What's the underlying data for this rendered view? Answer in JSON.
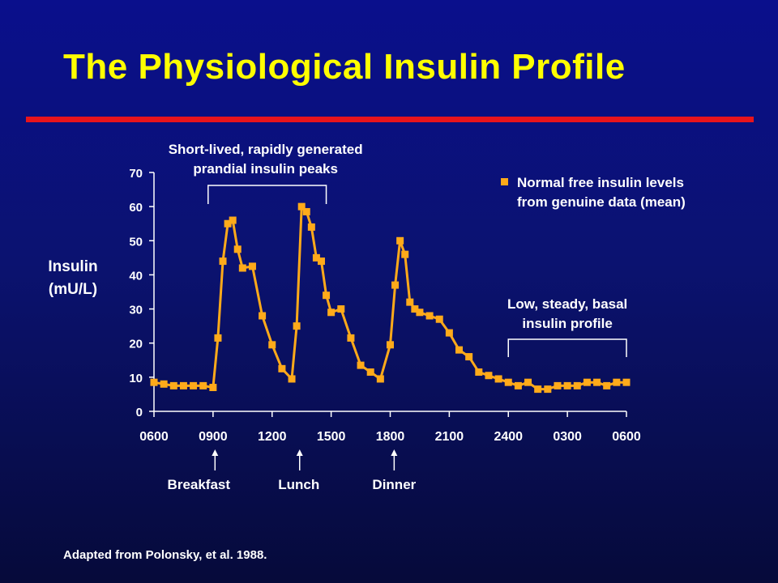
{
  "slide": {
    "title": "The Physiological Insulin Profile",
    "source": "Adapted from Polonsky, et al. 1988."
  },
  "colors": {
    "title": "#ffff00",
    "rule": "#e8141c",
    "series": "#ffaa1a",
    "text": "#ffffff"
  },
  "chart_data": {
    "type": "line",
    "ylabel_lines": [
      "Insulin",
      "(mU/L)"
    ],
    "ylim": [
      0,
      70
    ],
    "yticks": [
      0,
      10,
      20,
      30,
      40,
      50,
      60,
      70
    ],
    "xlim": [
      0,
      24
    ],
    "xticks": [
      {
        "x": 0,
        "label": "0600"
      },
      {
        "x": 3,
        "label": "0900"
      },
      {
        "x": 6,
        "label": "1200"
      },
      {
        "x": 9,
        "label": "1500"
      },
      {
        "x": 12,
        "label": "1800"
      },
      {
        "x": 15,
        "label": "2100"
      },
      {
        "x": 18,
        "label": "2400"
      },
      {
        "x": 21,
        "label": "0300"
      },
      {
        "x": 24,
        "label": "0600"
      }
    ],
    "grid": false,
    "legend_position": "top-right",
    "series": [
      {
        "name": "Normal free insulin levels from genuine data (mean)",
        "legend_lines": [
          "Normal free insulin levels",
          "from genuine data (mean)"
        ],
        "x": [
          0,
          0.5,
          1,
          1.5,
          2,
          2.5,
          3,
          3.25,
          3.5,
          3.75,
          4,
          4.25,
          4.5,
          5,
          5.5,
          6,
          6.5,
          7,
          7.25,
          7.5,
          7.75,
          8,
          8.25,
          8.5,
          8.75,
          9,
          9.5,
          10,
          10.5,
          11,
          11.5,
          12,
          12.25,
          12.5,
          12.75,
          13,
          13.25,
          13.5,
          14,
          14.5,
          15,
          15.5,
          16,
          16.5,
          17,
          17.5,
          18,
          18.5,
          19,
          19.5,
          20,
          20.5,
          21,
          21.5,
          22,
          22.5,
          23,
          23.5,
          24
        ],
        "y": [
          8.5,
          8,
          7.5,
          7.5,
          7.5,
          7.5,
          7,
          21.5,
          44,
          55,
          56,
          47.5,
          42,
          42.5,
          28,
          19.5,
          12.5,
          9.5,
          25,
          60,
          58.5,
          54,
          45,
          44,
          34,
          29,
          30,
          21.5,
          13.5,
          11.5,
          9.5,
          19.5,
          37,
          50,
          46,
          32,
          30,
          29,
          28,
          27,
          23,
          18,
          16,
          11.5,
          10.5,
          9.5,
          8.5,
          7.5,
          8.5,
          6.5,
          6.5,
          7.5,
          7.5,
          7.5,
          8.5,
          8.5,
          7.5,
          8.5,
          8.5
        ]
      }
    ],
    "annotations": [
      {
        "id": "prandial",
        "lines": [
          "Short-lived, rapidly generated",
          "prandial insulin peaks"
        ],
        "x_range": [
          2.75,
          8.75
        ]
      },
      {
        "id": "basal",
        "lines": [
          "Low, steady, basal",
          "insulin profile"
        ],
        "x_range": [
          18,
          24
        ]
      }
    ],
    "meals": [
      {
        "label": "Breakfast",
        "x": 3.1
      },
      {
        "label": "Lunch",
        "x": 7.4
      },
      {
        "label": "Dinner",
        "x": 12.2
      }
    ]
  }
}
